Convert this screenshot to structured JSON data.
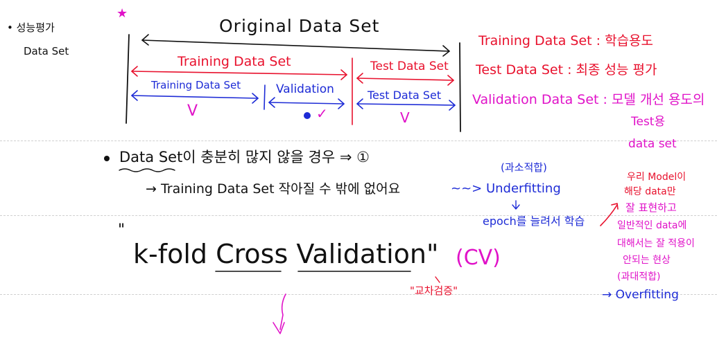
{
  "colors": {
    "black": "#111111",
    "red": "#e8112d",
    "blue": "#1d2bd6",
    "magenta": "#e012c8"
  },
  "left_notes": {
    "bullet_line": "• 성능평가",
    "dataset": "Data Set"
  },
  "star": "★",
  "diagram": {
    "original": "Original Data Set",
    "training_red": "Training Data Set",
    "test_red": "Test Data Set",
    "training_blue": "Training Data Set",
    "validation": "Validation",
    "test_blue": "Test Data Set",
    "check_marks": [
      "V",
      "✓",
      "V"
    ]
  },
  "definitions": {
    "training": "Training Data Set : 학습용도",
    "test": "Test Data Set : 최종 성능 평가",
    "validation": "Validation Data Set : 모델 개선 용도의",
    "validation_cont1": "Test용",
    "validation_cont2": "data set"
  },
  "main_note": {
    "bullet": "Data Set이 충분히 많지 않을 경우 ⇒ ①",
    "arrow_line": "→ Training Data Set 작아질 수 밖에 없어요",
    "underfitting_label": "(과소적합)",
    "underfitting": "~~> Underfitting",
    "epoch": "epoch를 늘려서 학습",
    "kfold_quote": "\"",
    "kfold": "k-fold Cross Validation\"",
    "cv": "(CV)",
    "cross_validation_kr": "\"교차검증\""
  },
  "overfitting_note": {
    "lines": [
      "우리 Model이",
      "해당 data만",
      "잘 표현하고",
      "일반적인 data에",
      "대해서는 잘 적용이",
      "안되는 현상",
      "(과대적합)"
    ],
    "overfitting": "→ Overfitting"
  }
}
